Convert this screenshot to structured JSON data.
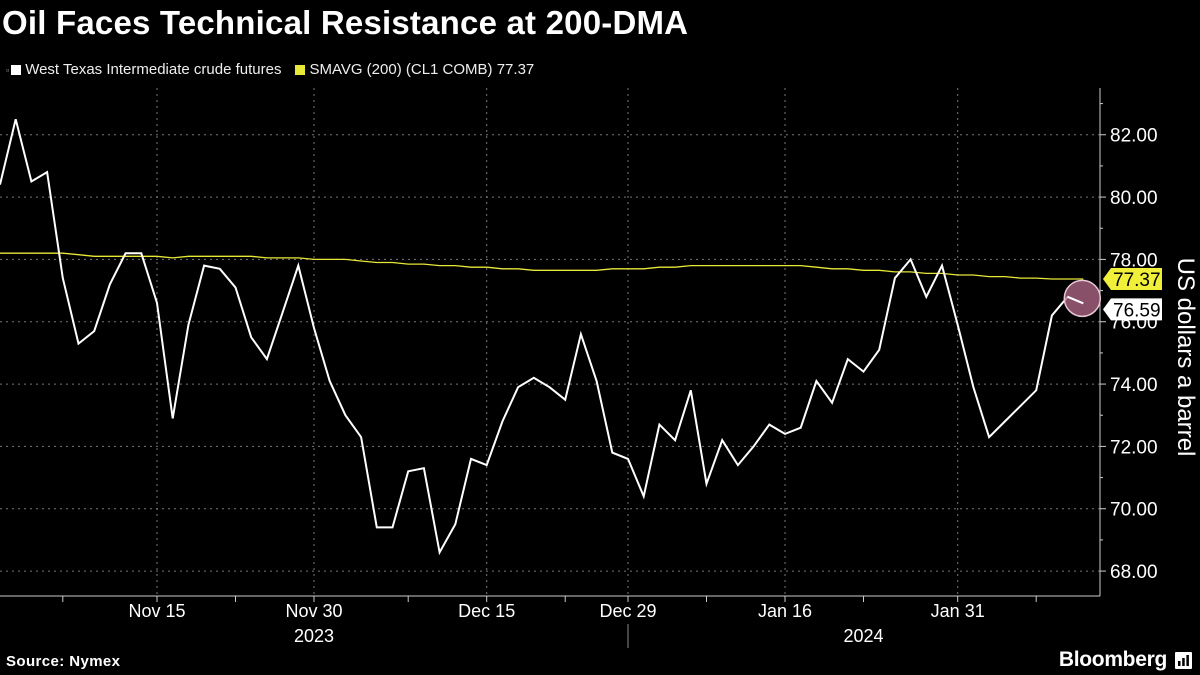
{
  "title": "Oil Faces Technical Resistance at 200-DMA",
  "legend": {
    "prefix": "▫",
    "wti_label": "West Texas Intermediate crude futures",
    "sma_label": "SMAVG (200) (CL1 COMB) 77.37"
  },
  "source": "Source: Nymex",
  "brand": "Bloomberg",
  "colors": {
    "wti": "#ffffff",
    "sma": "#e8e838",
    "marker": "#b56b8c",
    "badge_sma": "#f0ef3a",
    "badge_wti": "#ffffff"
  },
  "chart_data": {
    "type": "line",
    "title": "Oil Faces Technical Resistance at 200-DMA",
    "ylabel": "US dollars a barrel",
    "xlabel": "",
    "ylim": [
      67.2,
      83.5
    ],
    "y_ticks": [
      68,
      70,
      72,
      74,
      76,
      78,
      80,
      82
    ],
    "y_tick_labels": [
      "68.00",
      "70.00",
      "72.00",
      "74.00",
      "76.00",
      "78.00",
      "80.00",
      "82.00"
    ],
    "x_range": [
      0,
      70
    ],
    "x_ticks": [
      {
        "i": 10,
        "label": "Nov 15"
      },
      {
        "i": 20,
        "label": "Nov 30"
      },
      {
        "i": 31,
        "label": "Dec 15"
      },
      {
        "i": 40,
        "label": "Dec 29"
      },
      {
        "i": 50,
        "label": "Jan 16"
      },
      {
        "i": 61,
        "label": "Jan 31"
      }
    ],
    "minor_ticks": [
      4,
      15,
      26,
      36,
      45,
      55,
      66
    ],
    "year_labels": [
      {
        "i": 20,
        "label": "2023"
      },
      {
        "i": 55,
        "label": "2024"
      }
    ],
    "year_divider_i": 40,
    "series": [
      {
        "name": "West Texas Intermediate crude futures",
        "values": [
          80.4,
          82.5,
          80.5,
          80.8,
          77.4,
          75.3,
          75.7,
          77.2,
          78.2,
          78.2,
          76.6,
          72.9,
          75.9,
          77.8,
          77.7,
          77.1,
          75.5,
          74.8,
          76.3,
          77.8,
          75.8,
          74.1,
          73.0,
          72.3,
          69.4,
          69.4,
          71.2,
          71.3,
          68.6,
          69.5,
          71.6,
          71.4,
          72.8,
          73.9,
          74.2,
          73.9,
          73.5,
          75.6,
          74.1,
          71.8,
          71.6,
          70.4,
          72.7,
          72.2,
          73.8,
          70.8,
          72.2,
          71.4,
          72.0,
          72.7,
          72.4,
          72.6,
          74.1,
          73.4,
          74.8,
          74.4,
          75.1,
          77.4,
          78.0,
          76.8,
          77.8,
          75.9,
          73.9,
          72.3,
          72.8,
          73.3,
          73.8,
          76.2,
          76.8,
          76.59
        ]
      },
      {
        "name": "SMAVG (200) (CL1 COMB)",
        "values": [
          78.2,
          78.2,
          78.2,
          78.2,
          78.2,
          78.15,
          78.1,
          78.1,
          78.1,
          78.1,
          78.1,
          78.05,
          78.1,
          78.1,
          78.1,
          78.1,
          78.1,
          78.05,
          78.05,
          78.05,
          78.0,
          78.0,
          78.0,
          77.95,
          77.9,
          77.9,
          77.85,
          77.85,
          77.8,
          77.8,
          77.75,
          77.75,
          77.7,
          77.7,
          77.65,
          77.65,
          77.65,
          77.65,
          77.65,
          77.7,
          77.7,
          77.7,
          77.75,
          77.75,
          77.8,
          77.8,
          77.8,
          77.8,
          77.8,
          77.8,
          77.8,
          77.8,
          77.75,
          77.7,
          77.7,
          77.65,
          77.65,
          77.6,
          77.6,
          77.55,
          77.55,
          77.5,
          77.5,
          77.45,
          77.45,
          77.4,
          77.4,
          77.37,
          77.37,
          77.37
        ]
      }
    ],
    "last_value_badges": [
      {
        "series": "SMAVG (200) (CL1 COMB)",
        "value": 77.37,
        "label": "77.37"
      },
      {
        "series": "West Texas Intermediate crude futures",
        "value": 76.59,
        "label": "76.59"
      }
    ]
  }
}
